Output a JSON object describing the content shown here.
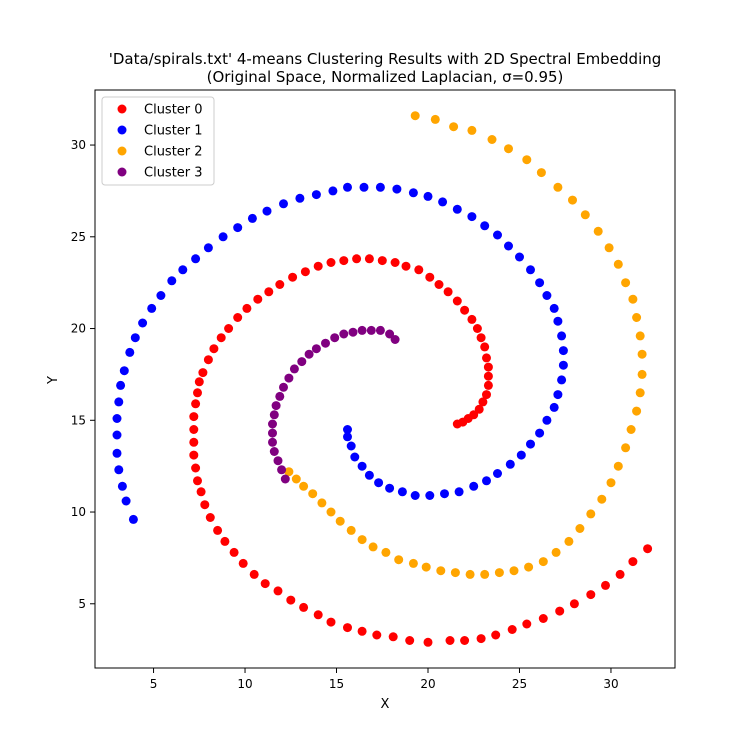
{
  "chart_data": {
    "type": "scatter",
    "title": "'Data/spirals.txt' 4-means Clustering Results with 2D Spectral Embedding",
    "subtitle": "(Original Space, Normalized Laplacian, σ=0.95)",
    "xlabel": "X",
    "ylabel": "Y",
    "xlim": [
      1.8,
      33.5
    ],
    "ylim": [
      1.5,
      33.0
    ],
    "xticks": [
      5,
      10,
      15,
      20,
      25,
      30
    ],
    "yticks": [
      5,
      10,
      15,
      20,
      25,
      30
    ],
    "grid": false,
    "legend_position": "top-left",
    "series": [
      {
        "name": "Cluster 0",
        "color": "#ff0000",
        "points": [
          [
            32.0,
            8.0
          ],
          [
            31.2,
            7.3
          ],
          [
            30.5,
            6.6
          ],
          [
            29.7,
            6.0
          ],
          [
            28.9,
            5.5
          ],
          [
            28.0,
            5.0
          ],
          [
            27.2,
            4.6
          ],
          [
            26.3,
            4.2
          ],
          [
            25.4,
            3.9
          ],
          [
            24.6,
            3.6
          ],
          [
            23.7,
            3.3
          ],
          [
            22.9,
            3.1
          ],
          [
            22.0,
            3.0
          ],
          [
            21.2,
            3.0
          ],
          [
            20.0,
            2.9
          ],
          [
            19.0,
            3.0
          ],
          [
            18.1,
            3.2
          ],
          [
            17.2,
            3.3
          ],
          [
            16.4,
            3.5
          ],
          [
            15.6,
            3.7
          ],
          [
            14.7,
            4.0
          ],
          [
            14.0,
            4.4
          ],
          [
            13.2,
            4.8
          ],
          [
            12.5,
            5.2
          ],
          [
            11.8,
            5.7
          ],
          [
            11.1,
            6.1
          ],
          [
            10.5,
            6.6
          ],
          [
            9.9,
            7.2
          ],
          [
            9.4,
            7.8
          ],
          [
            8.9,
            8.4
          ],
          [
            8.5,
            9.0
          ],
          [
            8.1,
            9.7
          ],
          [
            7.8,
            10.4
          ],
          [
            7.6,
            11.1
          ],
          [
            7.4,
            11.7
          ],
          [
            7.3,
            12.4
          ],
          [
            7.2,
            13.1
          ],
          [
            7.2,
            13.8
          ],
          [
            7.2,
            14.5
          ],
          [
            7.2,
            15.2
          ],
          [
            7.3,
            15.9
          ],
          [
            7.4,
            16.5
          ],
          [
            7.5,
            17.1
          ],
          [
            7.7,
            17.6
          ],
          [
            8.0,
            18.3
          ],
          [
            8.3,
            18.9
          ],
          [
            8.7,
            19.5
          ],
          [
            9.1,
            20.0
          ],
          [
            9.6,
            20.6
          ],
          [
            10.1,
            21.1
          ],
          [
            10.7,
            21.6
          ],
          [
            11.3,
            22.0
          ],
          [
            11.9,
            22.4
          ],
          [
            12.6,
            22.8
          ],
          [
            13.3,
            23.1
          ],
          [
            14.0,
            23.4
          ],
          [
            14.7,
            23.6
          ],
          [
            15.4,
            23.7
          ],
          [
            16.1,
            23.8
          ],
          [
            16.8,
            23.8
          ],
          [
            17.5,
            23.7
          ],
          [
            18.2,
            23.6
          ],
          [
            18.8,
            23.4
          ],
          [
            19.5,
            23.2
          ],
          [
            20.1,
            22.8
          ],
          [
            20.6,
            22.4
          ],
          [
            21.1,
            22.0
          ],
          [
            21.6,
            21.5
          ],
          [
            22.0,
            21.0
          ],
          [
            22.4,
            20.5
          ],
          [
            22.7,
            20.0
          ],
          [
            22.9,
            19.5
          ],
          [
            23.1,
            19.0
          ],
          [
            23.2,
            18.4
          ],
          [
            23.3,
            17.9
          ],
          [
            23.3,
            17.4
          ],
          [
            23.3,
            16.9
          ],
          [
            23.2,
            16.4
          ],
          [
            23.0,
            16.0
          ],
          [
            22.8,
            15.6
          ],
          [
            22.5,
            15.3
          ],
          [
            22.2,
            15.1
          ],
          [
            21.9,
            14.9
          ],
          [
            21.6,
            14.8
          ]
        ]
      },
      {
        "name": "Cluster 1",
        "color": "#0000ff",
        "points": [
          [
            3.9,
            9.6
          ],
          [
            3.5,
            10.6
          ],
          [
            3.3,
            11.4
          ],
          [
            3.1,
            12.3
          ],
          [
            3.0,
            13.2
          ],
          [
            3.0,
            14.2
          ],
          [
            3.0,
            15.1
          ],
          [
            3.1,
            16.0
          ],
          [
            3.2,
            16.9
          ],
          [
            3.4,
            17.7
          ],
          [
            3.7,
            18.7
          ],
          [
            4.0,
            19.5
          ],
          [
            4.4,
            20.3
          ],
          [
            4.9,
            21.1
          ],
          [
            5.4,
            21.8
          ],
          [
            6.0,
            22.6
          ],
          [
            6.6,
            23.2
          ],
          [
            7.3,
            23.8
          ],
          [
            8.0,
            24.4
          ],
          [
            8.8,
            25.0
          ],
          [
            9.6,
            25.5
          ],
          [
            10.4,
            26.0
          ],
          [
            11.2,
            26.4
          ],
          [
            12.1,
            26.8
          ],
          [
            13.0,
            27.1
          ],
          [
            13.9,
            27.3
          ],
          [
            14.8,
            27.5
          ],
          [
            15.6,
            27.7
          ],
          [
            16.5,
            27.7
          ],
          [
            17.4,
            27.7
          ],
          [
            18.3,
            27.6
          ],
          [
            19.2,
            27.4
          ],
          [
            20.0,
            27.2
          ],
          [
            20.8,
            26.9
          ],
          [
            21.6,
            26.5
          ],
          [
            22.4,
            26.1
          ],
          [
            23.1,
            25.6
          ],
          [
            23.8,
            25.1
          ],
          [
            24.4,
            24.5
          ],
          [
            25.0,
            23.9
          ],
          [
            25.6,
            23.2
          ],
          [
            26.1,
            22.5
          ],
          [
            26.5,
            21.8
          ],
          [
            26.9,
            21.1
          ],
          [
            27.1,
            20.4
          ],
          [
            27.3,
            19.6
          ],
          [
            27.4,
            18.8
          ],
          [
            27.4,
            18.0
          ],
          [
            27.3,
            17.2
          ],
          [
            27.1,
            16.4
          ],
          [
            26.9,
            15.7
          ],
          [
            26.5,
            15.0
          ],
          [
            26.1,
            14.3
          ],
          [
            25.6,
            13.7
          ],
          [
            25.1,
            13.1
          ],
          [
            24.5,
            12.6
          ],
          [
            23.8,
            12.1
          ],
          [
            23.2,
            11.7
          ],
          [
            22.5,
            11.4
          ],
          [
            21.7,
            11.1
          ],
          [
            20.9,
            11.0
          ],
          [
            20.1,
            10.9
          ],
          [
            19.3,
            10.9
          ],
          [
            18.6,
            11.1
          ],
          [
            17.9,
            11.3
          ],
          [
            17.3,
            11.6
          ],
          [
            16.8,
            12.0
          ],
          [
            16.4,
            12.5
          ],
          [
            16.0,
            13.0
          ],
          [
            15.8,
            13.6
          ],
          [
            15.6,
            14.1
          ],
          [
            15.6,
            14.5
          ]
        ]
      },
      {
        "name": "Cluster 2",
        "color": "#ffa500",
        "points": [
          [
            19.3,
            31.6
          ],
          [
            20.4,
            31.4
          ],
          [
            21.4,
            31.0
          ],
          [
            22.4,
            30.8
          ],
          [
            23.5,
            30.3
          ],
          [
            24.4,
            29.8
          ],
          [
            25.4,
            29.2
          ],
          [
            26.2,
            28.5
          ],
          [
            27.1,
            27.7
          ],
          [
            27.9,
            27.0
          ],
          [
            28.6,
            26.2
          ],
          [
            29.3,
            25.3
          ],
          [
            29.9,
            24.4
          ],
          [
            30.4,
            23.5
          ],
          [
            30.8,
            22.5
          ],
          [
            31.2,
            21.6
          ],
          [
            31.4,
            20.6
          ],
          [
            31.6,
            19.6
          ],
          [
            31.7,
            18.6
          ],
          [
            31.7,
            17.5
          ],
          [
            31.6,
            16.5
          ],
          [
            31.4,
            15.5
          ],
          [
            31.1,
            14.5
          ],
          [
            30.8,
            13.5
          ],
          [
            30.4,
            12.5
          ],
          [
            30.0,
            11.6
          ],
          [
            29.5,
            10.7
          ],
          [
            28.9,
            9.9
          ],
          [
            28.3,
            9.1
          ],
          [
            27.7,
            8.4
          ],
          [
            27.0,
            7.8
          ],
          [
            26.3,
            7.3
          ],
          [
            25.5,
            7.0
          ],
          [
            24.7,
            6.8
          ],
          [
            23.9,
            6.7
          ],
          [
            23.1,
            6.6
          ],
          [
            22.3,
            6.6
          ],
          [
            21.5,
            6.7
          ],
          [
            20.7,
            6.8
          ],
          [
            19.9,
            7.0
          ],
          [
            19.2,
            7.2
          ],
          [
            18.4,
            7.4
          ],
          [
            17.7,
            7.8
          ],
          [
            17.0,
            8.1
          ],
          [
            16.4,
            8.5
          ],
          [
            15.8,
            9.0
          ],
          [
            15.2,
            9.5
          ],
          [
            14.7,
            10.0
          ],
          [
            14.2,
            10.5
          ],
          [
            13.7,
            11.0
          ],
          [
            13.2,
            11.4
          ],
          [
            12.8,
            11.8
          ],
          [
            12.4,
            12.2
          ]
        ]
      },
      {
        "name": "Cluster 3",
        "color": "#800080",
        "points": [
          [
            12.2,
            11.8
          ],
          [
            12.0,
            12.3
          ],
          [
            11.8,
            12.8
          ],
          [
            11.6,
            13.3
          ],
          [
            11.5,
            13.8
          ],
          [
            11.5,
            14.3
          ],
          [
            11.5,
            14.8
          ],
          [
            11.6,
            15.3
          ],
          [
            11.7,
            15.8
          ],
          [
            11.9,
            16.3
          ],
          [
            12.1,
            16.8
          ],
          [
            12.4,
            17.3
          ],
          [
            12.7,
            17.8
          ],
          [
            13.1,
            18.2
          ],
          [
            13.5,
            18.6
          ],
          [
            13.9,
            18.9
          ],
          [
            14.4,
            19.2
          ],
          [
            14.9,
            19.5
          ],
          [
            15.4,
            19.7
          ],
          [
            15.9,
            19.8
          ],
          [
            16.4,
            19.9
          ],
          [
            16.9,
            19.9
          ],
          [
            17.4,
            19.9
          ],
          [
            17.9,
            19.7
          ],
          [
            18.2,
            19.4
          ]
        ]
      }
    ]
  }
}
